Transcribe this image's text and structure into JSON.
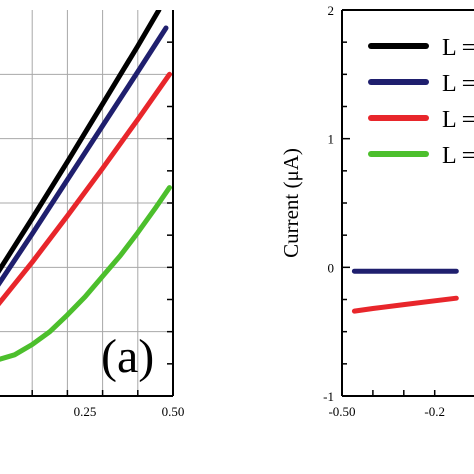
{
  "chart_data": [
    {
      "type": "line",
      "panel_label": "(a)",
      "xlabel": "",
      "ylabel": "",
      "x_ticks": [
        "0.25",
        "0.50"
      ],
      "xlim": [
        0.0,
        0.5
      ],
      "ylim": [
        -1,
        2
      ],
      "grid": true,
      "series": [
        {
          "color": "#000000",
          "x": [
            0.0,
            0.1,
            0.2,
            0.3,
            0.4,
            0.46
          ],
          "y": [
            -0.05,
            0.38,
            0.82,
            1.27,
            1.72,
            2.0
          ]
        },
        {
          "color": "#1f1f6e",
          "x": [
            0.0,
            0.1,
            0.2,
            0.3,
            0.4,
            0.48
          ],
          "y": [
            -0.15,
            0.26,
            0.68,
            1.1,
            1.52,
            1.86
          ]
        },
        {
          "color": "#e8262b",
          "x": [
            0.0,
            0.1,
            0.2,
            0.3,
            0.4,
            0.49
          ],
          "y": [
            -0.3,
            0.04,
            0.4,
            0.77,
            1.15,
            1.5
          ]
        },
        {
          "color": "#4cbf2c",
          "x": [
            0.0,
            0.05,
            0.1,
            0.15,
            0.2,
            0.25,
            0.3,
            0.35,
            0.4,
            0.45,
            0.49
          ],
          "y": [
            -0.72,
            -0.68,
            -0.6,
            -0.5,
            -0.37,
            -0.23,
            -0.07,
            0.09,
            0.27,
            0.46,
            0.62
          ]
        }
      ]
    },
    {
      "type": "line",
      "xlabel": "",
      "ylabel": "Current (μA)",
      "x_ticks": [
        "-0.50",
        "-0.2"
      ],
      "y_ticks": [
        "-1",
        "0",
        "1",
        "2"
      ],
      "xlim": [
        -0.5,
        0.5
      ],
      "ylim": [
        -1,
        2
      ],
      "grid": false,
      "legend": {
        "position": "top-right",
        "entries": [
          {
            "label": "L =",
            "color": "#000000"
          },
          {
            "label": "L =",
            "color": "#1f1f6e"
          },
          {
            "label": "L =",
            "color": "#e8262b"
          },
          {
            "label": "L =",
            "color": "#4cbf2c"
          }
        ]
      },
      "series": [
        {
          "color": "#1f1f6e",
          "x": [
            -0.46,
            -0.4,
            -0.3,
            -0.2,
            -0.13
          ],
          "y": [
            -0.03,
            -0.03,
            -0.03,
            -0.03,
            -0.03
          ]
        },
        {
          "color": "#e8262b",
          "x": [
            -0.46,
            -0.4,
            -0.3,
            -0.2,
            -0.13
          ],
          "y": [
            -0.34,
            -0.32,
            -0.29,
            -0.26,
            -0.24
          ]
        }
      ]
    }
  ]
}
